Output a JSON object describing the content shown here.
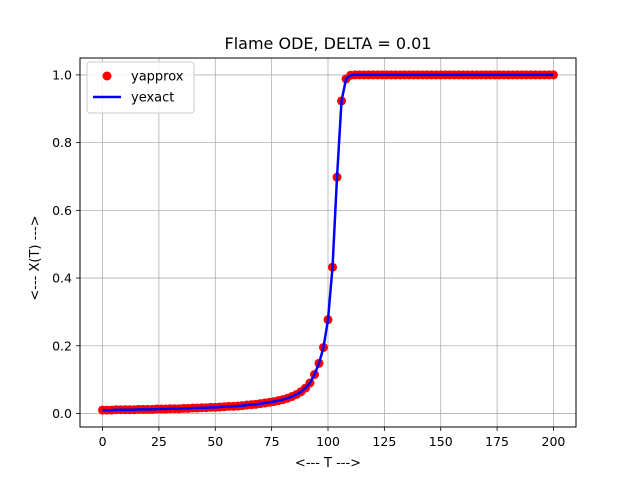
{
  "chart_data": {
    "type": "line",
    "title": "Flame ODE, DELTA = 0.01",
    "xlabel": "<--- T --->",
    "ylabel": "<--- X(T) --->",
    "xlim": [
      -10,
      210
    ],
    "ylim": [
      -0.04,
      1.05
    ],
    "xticks": [
      0,
      25,
      50,
      75,
      100,
      125,
      150,
      175,
      200
    ],
    "yticks": [
      0.0,
      0.2,
      0.4,
      0.6,
      0.8,
      1.0
    ],
    "grid": true,
    "legend_position": "top-left",
    "series": [
      {
        "name": "yapprox",
        "style": "markers",
        "color": "#ff0000",
        "x": [
          0,
          2,
          4,
          6,
          8,
          10,
          12,
          14,
          16,
          18,
          20,
          22,
          24,
          26,
          28,
          30,
          32,
          34,
          36,
          38,
          40,
          42,
          44,
          46,
          48,
          50,
          52,
          54,
          56,
          58,
          60,
          62,
          64,
          66,
          68,
          70,
          72,
          74,
          76,
          78,
          80,
          82,
          84,
          86,
          88,
          90,
          92,
          94,
          96,
          98,
          100,
          102,
          104,
          106,
          108,
          110,
          112,
          114,
          116,
          118,
          120,
          122,
          124,
          126,
          128,
          130,
          132,
          134,
          136,
          138,
          140,
          142,
          144,
          146,
          148,
          150,
          152,
          154,
          156,
          158,
          160,
          162,
          164,
          166,
          168,
          170,
          172,
          174,
          176,
          178,
          180,
          182,
          184,
          186,
          188,
          190,
          192,
          194,
          196,
          198,
          200
        ],
        "y": [
          0.01,
          0.01,
          0.01,
          0.011,
          0.011,
          0.011,
          0.011,
          0.011,
          0.012,
          0.012,
          0.012,
          0.012,
          0.013,
          0.013,
          0.013,
          0.014,
          0.014,
          0.014,
          0.015,
          0.015,
          0.016,
          0.016,
          0.017,
          0.017,
          0.018,
          0.018,
          0.019,
          0.02,
          0.021,
          0.021,
          0.022,
          0.023,
          0.025,
          0.026,
          0.027,
          0.029,
          0.031,
          0.033,
          0.035,
          0.038,
          0.041,
          0.045,
          0.05,
          0.056,
          0.064,
          0.075,
          0.09,
          0.115,
          0.148,
          0.195,
          0.277,
          0.432,
          0.698,
          0.923,
          0.988,
          0.999,
          1.0,
          1.0,
          1.0,
          1.0,
          1.0,
          1.0,
          1.0,
          1.0,
          1.0,
          1.0,
          1.0,
          1.0,
          1.0,
          1.0,
          1.0,
          1.0,
          1.0,
          1.0,
          1.0,
          1.0,
          1.0,
          1.0,
          1.0,
          1.0,
          1.0,
          1.0,
          1.0,
          1.0,
          1.0,
          1.0,
          1.0,
          1.0,
          1.0,
          1.0,
          1.0,
          1.0,
          1.0,
          1.0,
          1.0,
          1.0,
          1.0,
          1.0,
          1.0,
          1.0,
          1.0
        ]
      },
      {
        "name": "yexact",
        "style": "line",
        "color": "#0000ff",
        "x": [
          0,
          2,
          4,
          6,
          8,
          10,
          12,
          14,
          16,
          18,
          20,
          22,
          24,
          26,
          28,
          30,
          32,
          34,
          36,
          38,
          40,
          42,
          44,
          46,
          48,
          50,
          52,
          54,
          56,
          58,
          60,
          62,
          64,
          66,
          68,
          70,
          72,
          74,
          76,
          78,
          80,
          82,
          84,
          86,
          88,
          90,
          92,
          94,
          96,
          98,
          100,
          102,
          104,
          106,
          108,
          110,
          112,
          114,
          116,
          118,
          120,
          122,
          124,
          126,
          128,
          130,
          132,
          134,
          136,
          138,
          140,
          142,
          144,
          146,
          148,
          150,
          152,
          154,
          156,
          158,
          160,
          162,
          164,
          166,
          168,
          170,
          172,
          174,
          176,
          178,
          180,
          182,
          184,
          186,
          188,
          190,
          192,
          194,
          196,
          198,
          200
        ],
        "y": [
          0.01,
          0.01,
          0.01,
          0.011,
          0.011,
          0.011,
          0.011,
          0.011,
          0.012,
          0.012,
          0.012,
          0.012,
          0.013,
          0.013,
          0.013,
          0.014,
          0.014,
          0.014,
          0.015,
          0.015,
          0.016,
          0.016,
          0.017,
          0.017,
          0.018,
          0.018,
          0.019,
          0.02,
          0.021,
          0.021,
          0.022,
          0.023,
          0.025,
          0.026,
          0.027,
          0.029,
          0.031,
          0.033,
          0.035,
          0.038,
          0.041,
          0.045,
          0.05,
          0.056,
          0.064,
          0.075,
          0.09,
          0.115,
          0.148,
          0.195,
          0.277,
          0.432,
          0.698,
          0.923,
          0.988,
          0.999,
          1.0,
          1.0,
          1.0,
          1.0,
          1.0,
          1.0,
          1.0,
          1.0,
          1.0,
          1.0,
          1.0,
          1.0,
          1.0,
          1.0,
          1.0,
          1.0,
          1.0,
          1.0,
          1.0,
          1.0,
          1.0,
          1.0,
          1.0,
          1.0,
          1.0,
          1.0,
          1.0,
          1.0,
          1.0,
          1.0,
          1.0,
          1.0,
          1.0,
          1.0,
          1.0,
          1.0,
          1.0,
          1.0,
          1.0,
          1.0,
          1.0,
          1.0,
          1.0,
          1.0,
          1.0
        ]
      }
    ]
  }
}
